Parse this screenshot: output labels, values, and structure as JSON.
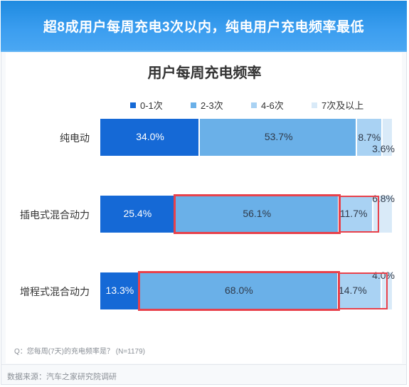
{
  "banner": {
    "title": "超8成用户每周充电3次以内，纯电用户充电频率最低"
  },
  "chart_data": {
    "type": "bar",
    "orientation": "horizontal",
    "stacked": true,
    "normalized_100_percent": true,
    "title": "用户每周充电频率",
    "categories": [
      "纯电动",
      "插电式混合动力",
      "增程式混合动力"
    ],
    "series": [
      {
        "name": "0-1次",
        "color": "#1569d6",
        "values": [
          34.0,
          25.4,
          13.3
        ],
        "labels": [
          "34.0%",
          "25.4%",
          "13.3%"
        ]
      },
      {
        "name": "2-3次",
        "color": "#6ab0e8",
        "values": [
          53.7,
          56.1,
          68.0
        ],
        "labels": [
          "53.7%",
          "56.1%",
          "68.0%"
        ]
      },
      {
        "name": "4-6次",
        "color": "#a9d2f3",
        "values": [
          8.7,
          11.7,
          14.7
        ],
        "labels": [
          "8.7%",
          "11.7%",
          "14.7%"
        ]
      },
      {
        "name": "7次及以上",
        "color": "#d9eaf8",
        "values": [
          3.6,
          6.8,
          4.0
        ],
        "labels": [
          "3.6%",
          "6.8%",
          "4.0%"
        ]
      }
    ],
    "legend_position": "top",
    "grid": false,
    "highlight_color": "#e8414b"
  },
  "footnote": {
    "question": "Q：您每周(7天)的充电频率是？  (N=1179)"
  },
  "source": {
    "text": "数据来源：汽车之家研究院调研"
  }
}
